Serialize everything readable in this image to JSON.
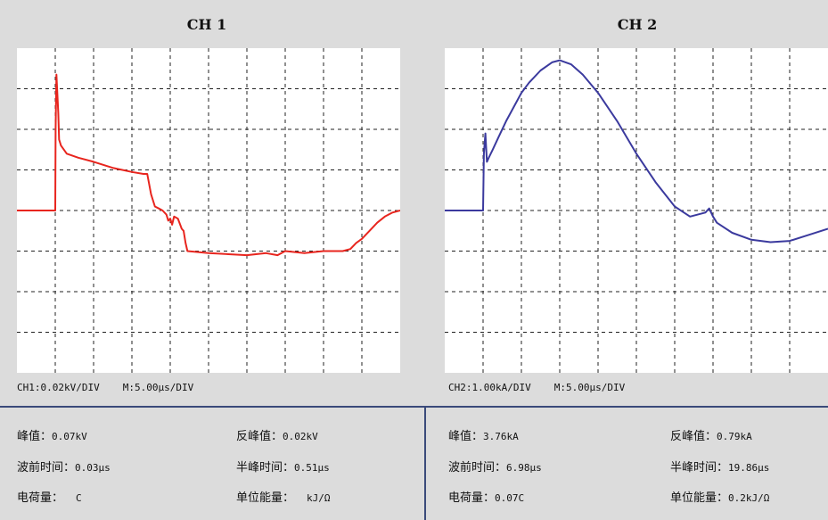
{
  "chart_data": [
    {
      "type": "line",
      "title": "CH 1",
      "color": "#e8251e",
      "xlim": [
        0,
        10
      ],
      "ylim": [
        -4,
        4
      ],
      "grid": true,
      "scale": "CH1:0.02kV/DIV",
      "timebase": "M:5.00μs/DIV",
      "x": [
        0,
        1.0,
        1.01,
        1.03,
        1.08,
        1.1,
        1.15,
        1.3,
        1.6,
        2.0,
        2.5,
        3.0,
        3.3,
        3.4,
        3.5,
        3.6,
        3.7,
        3.8,
        3.9,
        3.95,
        4.0,
        4.05,
        4.1,
        4.2,
        4.3,
        4.35,
        4.4,
        4.45,
        5.0,
        6.0,
        6.5,
        6.8,
        7.0,
        7.5,
        8.0,
        8.5,
        8.7,
        8.85,
        9.0,
        9.2,
        9.4,
        9.6,
        9.8,
        10.0
      ],
      "y": [
        0.0,
        0.0,
        2.0,
        3.35,
        2.4,
        1.75,
        1.6,
        1.4,
        1.3,
        1.2,
        1.05,
        0.95,
        0.9,
        0.9,
        0.4,
        0.1,
        0.05,
        0.0,
        -0.1,
        -0.25,
        -0.2,
        -0.35,
        -0.15,
        -0.2,
        -0.45,
        -0.5,
        -0.8,
        -1.0,
        -1.05,
        -1.1,
        -1.05,
        -1.1,
        -1.0,
        -1.05,
        -1.0,
        -1.0,
        -0.95,
        -0.8,
        -0.7,
        -0.5,
        -0.3,
        -0.15,
        -0.05,
        0.0
      ],
      "measurements": [
        {
          "label": "峰值：",
          "value": "0.07kV"
        },
        {
          "label": "反峰值：",
          "value": "0.02kV"
        },
        {
          "label": "波前时间：",
          "value": "0.03μs"
        },
        {
          "label": "半峰时间：",
          "value": "0.51μs"
        },
        {
          "label": "电荷量：",
          "value": "C"
        },
        {
          "label": "单位能量：",
          "value": "kJ/Ω"
        }
      ]
    },
    {
      "type": "line",
      "title": "CH 2",
      "color": "#3b3a9e",
      "xlim": [
        0,
        10
      ],
      "ylim": [
        -4,
        4
      ],
      "grid": true,
      "scale": "CH2:1.00kA/DIV",
      "timebase": "M:5.00μs/DIV",
      "x": [
        0,
        1.0,
        1.02,
        1.06,
        1.1,
        1.15,
        1.25,
        1.4,
        1.6,
        1.8,
        2.0,
        2.2,
        2.5,
        2.8,
        3.0,
        3.3,
        3.6,
        4.0,
        4.5,
        5.0,
        5.5,
        6.0,
        6.4,
        6.8,
        6.9,
        7.0,
        7.1,
        7.5,
        8.0,
        8.5,
        9.0,
        9.5,
        10.0
      ],
      "y": [
        0.0,
        0.0,
        1.4,
        1.9,
        1.2,
        1.3,
        1.5,
        1.8,
        2.2,
        2.55,
        2.9,
        3.15,
        3.45,
        3.65,
        3.7,
        3.6,
        3.35,
        2.9,
        2.2,
        1.4,
        0.7,
        0.1,
        -0.15,
        -0.05,
        0.05,
        -0.15,
        -0.3,
        -0.55,
        -0.72,
        -0.78,
        -0.75,
        -0.6,
        -0.45
      ],
      "measurements": [
        {
          "label": "峰值：",
          "value": "3.76kA"
        },
        {
          "label": "反峰值：",
          "value": "0.79kA"
        },
        {
          "label": "波前时间：",
          "value": "6.98μs"
        },
        {
          "label": "半峰时间：",
          "value": "19.86μs"
        },
        {
          "label": "电荷量：",
          "value": "0.07C"
        },
        {
          "label": "单位能量：",
          "value": "0.2kJ/Ω"
        }
      ]
    }
  ]
}
